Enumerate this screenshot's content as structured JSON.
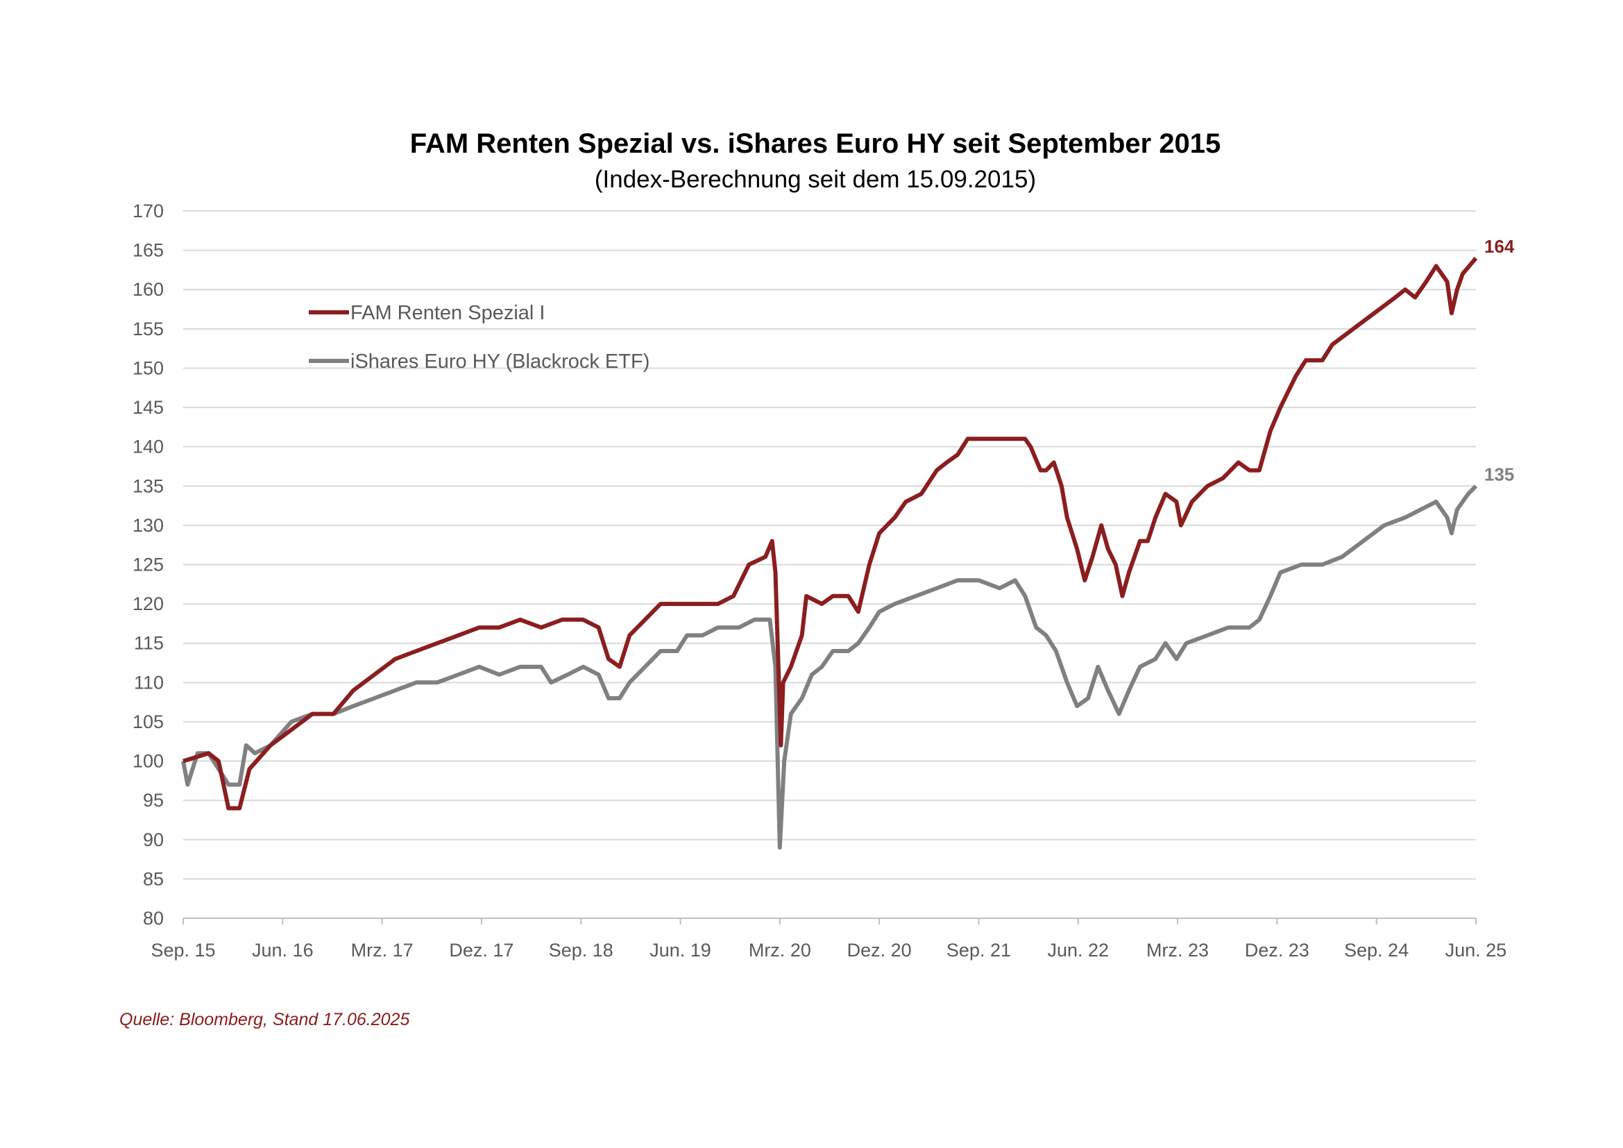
{
  "chart_data": {
    "type": "line",
    "title": "FAM Renten Spezial vs. iShares Euro HY seit September 2015",
    "subtitle": "(Index-Berechnung seit dem 15.09.2015)",
    "xlabel": "",
    "ylabel": "",
    "x_unit": "months since Sep. 2015",
    "xlim": [
      0,
      117
    ],
    "ylim": [
      80,
      170
    ],
    "y_ticks": [
      80,
      85,
      90,
      95,
      100,
      105,
      110,
      115,
      120,
      125,
      130,
      135,
      140,
      145,
      150,
      155,
      160,
      165,
      170
    ],
    "x_ticks": [
      {
        "t": 0,
        "label": "Sep. 15"
      },
      {
        "t": 9,
        "label": "Jun. 16"
      },
      {
        "t": 18,
        "label": "Mrz. 17"
      },
      {
        "t": 27,
        "label": "Dez. 17"
      },
      {
        "t": 36,
        "label": "Sep. 18"
      },
      {
        "t": 45,
        "label": "Jun. 19"
      },
      {
        "t": 54,
        "label": "Mrz. 20"
      },
      {
        "t": 63,
        "label": "Dez. 20"
      },
      {
        "t": 72,
        "label": "Sep. 21"
      },
      {
        "t": 81,
        "label": "Jun. 22"
      },
      {
        "t": 90,
        "label": "Mrz. 23"
      },
      {
        "t": 99,
        "label": "Dez. 23"
      },
      {
        "t": 108,
        "label": "Sep. 24"
      },
      {
        "t": 117,
        "label": "Jun. 25"
      }
    ],
    "grid": "horizontal",
    "legend_position": "top-left",
    "series": [
      {
        "name": "FAM Renten Spezial I",
        "color": "#8b1e1e",
        "end_label": "164",
        "points": [
          [
            0,
            100
          ],
          [
            2.3,
            101
          ],
          [
            3.2,
            100
          ],
          [
            4.1,
            94
          ],
          [
            5.1,
            94
          ],
          [
            6.0,
            99
          ],
          [
            7.9,
            102
          ],
          [
            9.8,
            104
          ],
          [
            11.7,
            106
          ],
          [
            13.6,
            106
          ],
          [
            15.4,
            109
          ],
          [
            17.3,
            111
          ],
          [
            19.2,
            113
          ],
          [
            21.1,
            114
          ],
          [
            23.0,
            115
          ],
          [
            24.9,
            116
          ],
          [
            26.8,
            117
          ],
          [
            28.6,
            117
          ],
          [
            30.5,
            118
          ],
          [
            32.4,
            117
          ],
          [
            34.3,
            118
          ],
          [
            36.2,
            118
          ],
          [
            37.6,
            117
          ],
          [
            38.5,
            113
          ],
          [
            39.5,
            112
          ],
          [
            40.4,
            116
          ],
          [
            41.8,
            118
          ],
          [
            43.2,
            120
          ],
          [
            44.7,
            120
          ],
          [
            46.5,
            120
          ],
          [
            48.4,
            120
          ],
          [
            49.8,
            121
          ],
          [
            51.2,
            125
          ],
          [
            52.7,
            126
          ],
          [
            53.3,
            128
          ],
          [
            53.6,
            124
          ],
          [
            54.1,
            102
          ],
          [
            54.3,
            110
          ],
          [
            55.0,
            112
          ],
          [
            56.0,
            116
          ],
          [
            56.4,
            121
          ],
          [
            57.8,
            120
          ],
          [
            58.8,
            121
          ],
          [
            60.2,
            121
          ],
          [
            61.1,
            119
          ],
          [
            62.1,
            125
          ],
          [
            63.0,
            129
          ],
          [
            64.4,
            131
          ],
          [
            65.4,
            133
          ],
          [
            66.8,
            134
          ],
          [
            68.2,
            137
          ],
          [
            69.1,
            138
          ],
          [
            70.1,
            139
          ],
          [
            71.0,
            141
          ],
          [
            72.0,
            141
          ],
          [
            72.9,
            141
          ],
          [
            73.9,
            141
          ],
          [
            75.3,
            141
          ],
          [
            76.2,
            141
          ],
          [
            76.7,
            140
          ],
          [
            77.6,
            137
          ],
          [
            78.1,
            137
          ],
          [
            78.8,
            138
          ],
          [
            79.5,
            135
          ],
          [
            80.0,
            131
          ],
          [
            80.9,
            127
          ],
          [
            81.6,
            123
          ],
          [
            82.3,
            126
          ],
          [
            83.1,
            130
          ],
          [
            83.7,
            127
          ],
          [
            84.4,
            125
          ],
          [
            85.0,
            121
          ],
          [
            85.6,
            124
          ],
          [
            86.6,
            128
          ],
          [
            87.3,
            128
          ],
          [
            88.0,
            131
          ],
          [
            88.9,
            134
          ],
          [
            89.9,
            133
          ],
          [
            90.3,
            130
          ],
          [
            91.3,
            133
          ],
          [
            92.7,
            135
          ],
          [
            94.1,
            136
          ],
          [
            95.5,
            138
          ],
          [
            96.5,
            137
          ],
          [
            97.4,
            137
          ],
          [
            98.4,
            142
          ],
          [
            99.3,
            145
          ],
          [
            100.7,
            149
          ],
          [
            101.6,
            151
          ],
          [
            103.1,
            151
          ],
          [
            104.0,
            153
          ],
          [
            105.9,
            155
          ],
          [
            107.8,
            157
          ],
          [
            109.7,
            159
          ],
          [
            110.6,
            160
          ],
          [
            111.5,
            159
          ],
          [
            112.5,
            161
          ],
          [
            113.4,
            163
          ],
          [
            114.4,
            161
          ],
          [
            114.8,
            157
          ],
          [
            115.3,
            160
          ],
          [
            115.8,
            162
          ],
          [
            117,
            164
          ]
        ]
      },
      {
        "name": "iShares Euro HY (Blackrock ETF)",
        "color": "#808080",
        "end_label": "135",
        "points": [
          [
            0,
            100
          ],
          [
            0.4,
            97
          ],
          [
            1.3,
            101
          ],
          [
            2.3,
            101
          ],
          [
            3.2,
            99
          ],
          [
            4.1,
            97
          ],
          [
            5.1,
            97
          ],
          [
            5.7,
            102
          ],
          [
            6.5,
            101
          ],
          [
            7.9,
            102
          ],
          [
            9.8,
            105
          ],
          [
            11.7,
            106
          ],
          [
            13.6,
            106
          ],
          [
            15.4,
            107
          ],
          [
            17.3,
            108
          ],
          [
            19.2,
            109
          ],
          [
            21.1,
            110
          ],
          [
            23.0,
            110
          ],
          [
            24.9,
            111
          ],
          [
            26.8,
            112
          ],
          [
            28.6,
            111
          ],
          [
            30.5,
            112
          ],
          [
            32.4,
            112
          ],
          [
            33.3,
            110
          ],
          [
            34.8,
            111
          ],
          [
            36.2,
            112
          ],
          [
            37.6,
            111
          ],
          [
            38.5,
            108
          ],
          [
            39.5,
            108
          ],
          [
            40.4,
            110
          ],
          [
            41.8,
            112
          ],
          [
            43.2,
            114
          ],
          [
            44.7,
            114
          ],
          [
            45.6,
            116
          ],
          [
            47.0,
            116
          ],
          [
            48.4,
            117
          ],
          [
            50.3,
            117
          ],
          [
            51.7,
            118
          ],
          [
            53.1,
            118
          ],
          [
            53.6,
            112
          ],
          [
            54.0,
            89
          ],
          [
            54.4,
            100
          ],
          [
            55.0,
            106
          ],
          [
            56.0,
            108
          ],
          [
            56.9,
            111
          ],
          [
            57.8,
            112
          ],
          [
            58.8,
            114
          ],
          [
            60.2,
            114
          ],
          [
            61.1,
            115
          ],
          [
            62.1,
            117
          ],
          [
            63.0,
            119
          ],
          [
            64.4,
            120
          ],
          [
            66.3,
            121
          ],
          [
            68.2,
            122
          ],
          [
            70.1,
            123
          ],
          [
            72.0,
            123
          ],
          [
            73.9,
            122
          ],
          [
            75.3,
            123
          ],
          [
            76.2,
            121
          ],
          [
            77.2,
            117
          ],
          [
            78.1,
            116
          ],
          [
            79.0,
            114
          ],
          [
            80.0,
            110
          ],
          [
            80.9,
            107
          ],
          [
            81.9,
            108
          ],
          [
            82.8,
            112
          ],
          [
            83.7,
            109
          ],
          [
            84.7,
            106
          ],
          [
            85.6,
            109
          ],
          [
            86.6,
            112
          ],
          [
            88.0,
            113
          ],
          [
            88.9,
            115
          ],
          [
            89.9,
            113
          ],
          [
            90.8,
            115
          ],
          [
            92.7,
            116
          ],
          [
            94.6,
            117
          ],
          [
            96.5,
            117
          ],
          [
            97.4,
            118
          ],
          [
            98.4,
            121
          ],
          [
            99.3,
            124
          ],
          [
            101.2,
            125
          ],
          [
            103.1,
            125
          ],
          [
            104.9,
            126
          ],
          [
            106.8,
            128
          ],
          [
            108.7,
            130
          ],
          [
            110.6,
            131
          ],
          [
            112.0,
            132
          ],
          [
            113.4,
            133
          ],
          [
            114.4,
            131
          ],
          [
            114.8,
            129
          ],
          [
            115.3,
            132
          ],
          [
            116.3,
            134
          ],
          [
            117,
            135
          ]
        ]
      }
    ]
  },
  "source": "Quelle: Bloomberg, Stand 17.06.2025"
}
